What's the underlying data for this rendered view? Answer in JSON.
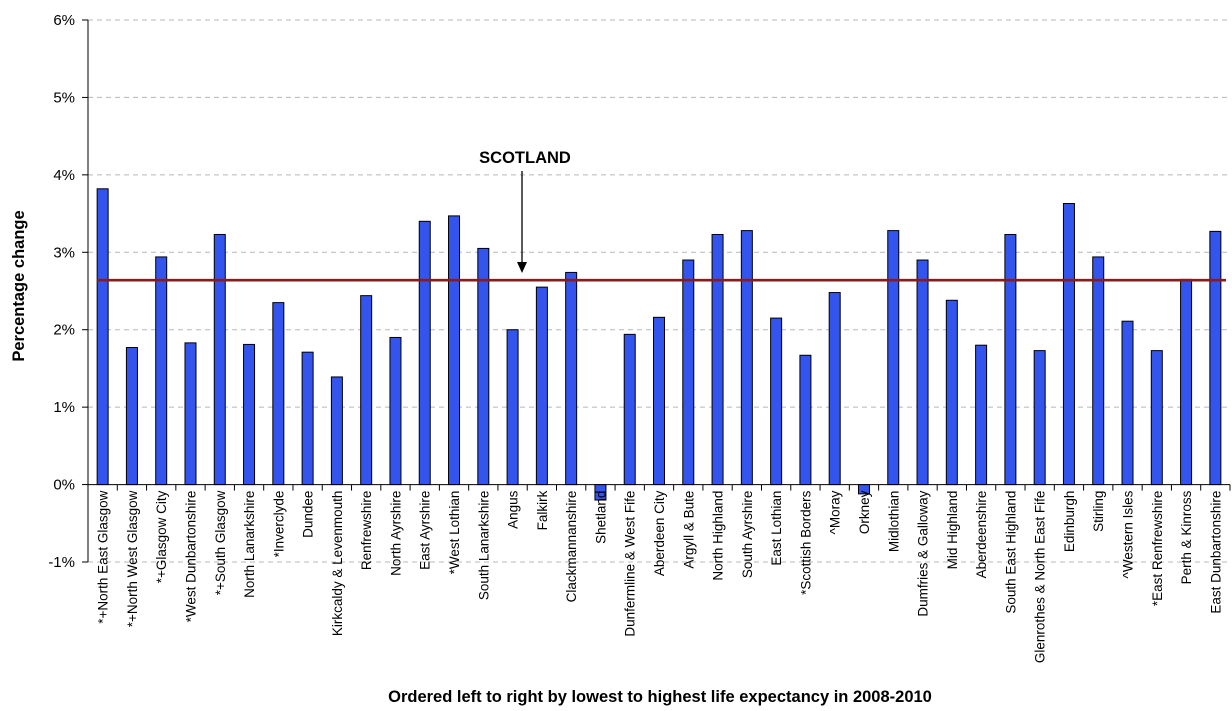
{
  "chart_data": {
    "type": "bar",
    "title": "",
    "xlabel": "Ordered left to right by lowest to highest life expectancy in 2008-2010",
    "ylabel": "Percentage change",
    "ylim": [
      -1,
      6
    ],
    "yticks": [
      "-1%",
      "0%",
      "1%",
      "2%",
      "3%",
      "4%",
      "5%",
      "6%"
    ],
    "grid": "horizontal dashed",
    "bar_color": "#3355ee",
    "reference_color": "#8b1a1a",
    "categories": [
      "*+North East Glasgow",
      "*+North West Glasgow",
      "*+Glasgow City",
      "*West Dunbartonshire",
      "*+South Glasgow",
      "North Lanarkshire",
      "*Inverclyde",
      "Dundee",
      "Kirkcaldy & Levenmouth",
      "Renfrewshire",
      "North Ayrshire",
      "East Ayrshire",
      "*West Lothian",
      "South Lanarkshire",
      "Angus",
      "Falkirk",
      "Clackmannanshire",
      "Shetland",
      "Dunfermline & West Fife",
      "Aberdeen City",
      "Argyll & Bute",
      "North Highland",
      "South Ayrshire",
      "East Lothian",
      "*Scottish Borders",
      "^Moray",
      "Orkney",
      "Midlothian",
      "Dumfries & Galloway",
      "Mid Highland",
      "Aberdeenshire",
      "South East Highland",
      "Glenrothes & North East Fife",
      "Edinburgh",
      "Stirling",
      "^Western Isles",
      "*East Renfrewshire",
      "Perth & Kinross",
      "East Dunbartonshire"
    ],
    "values": [
      3.82,
      1.77,
      2.94,
      1.83,
      3.23,
      1.81,
      2.35,
      1.71,
      1.39,
      2.44,
      1.9,
      3.4,
      3.47,
      3.05,
      2.0,
      2.55,
      2.74,
      -0.2,
      1.94,
      2.16,
      2.9,
      3.23,
      3.28,
      2.15,
      1.67,
      2.48,
      -0.12,
      3.28,
      2.9,
      2.38,
      1.8,
      3.23,
      1.73,
      3.63,
      2.94,
      2.11,
      1.73,
      2.65,
      3.27
    ],
    "reference_line": {
      "label": "SCOTLAND",
      "value": 2.64
    }
  }
}
